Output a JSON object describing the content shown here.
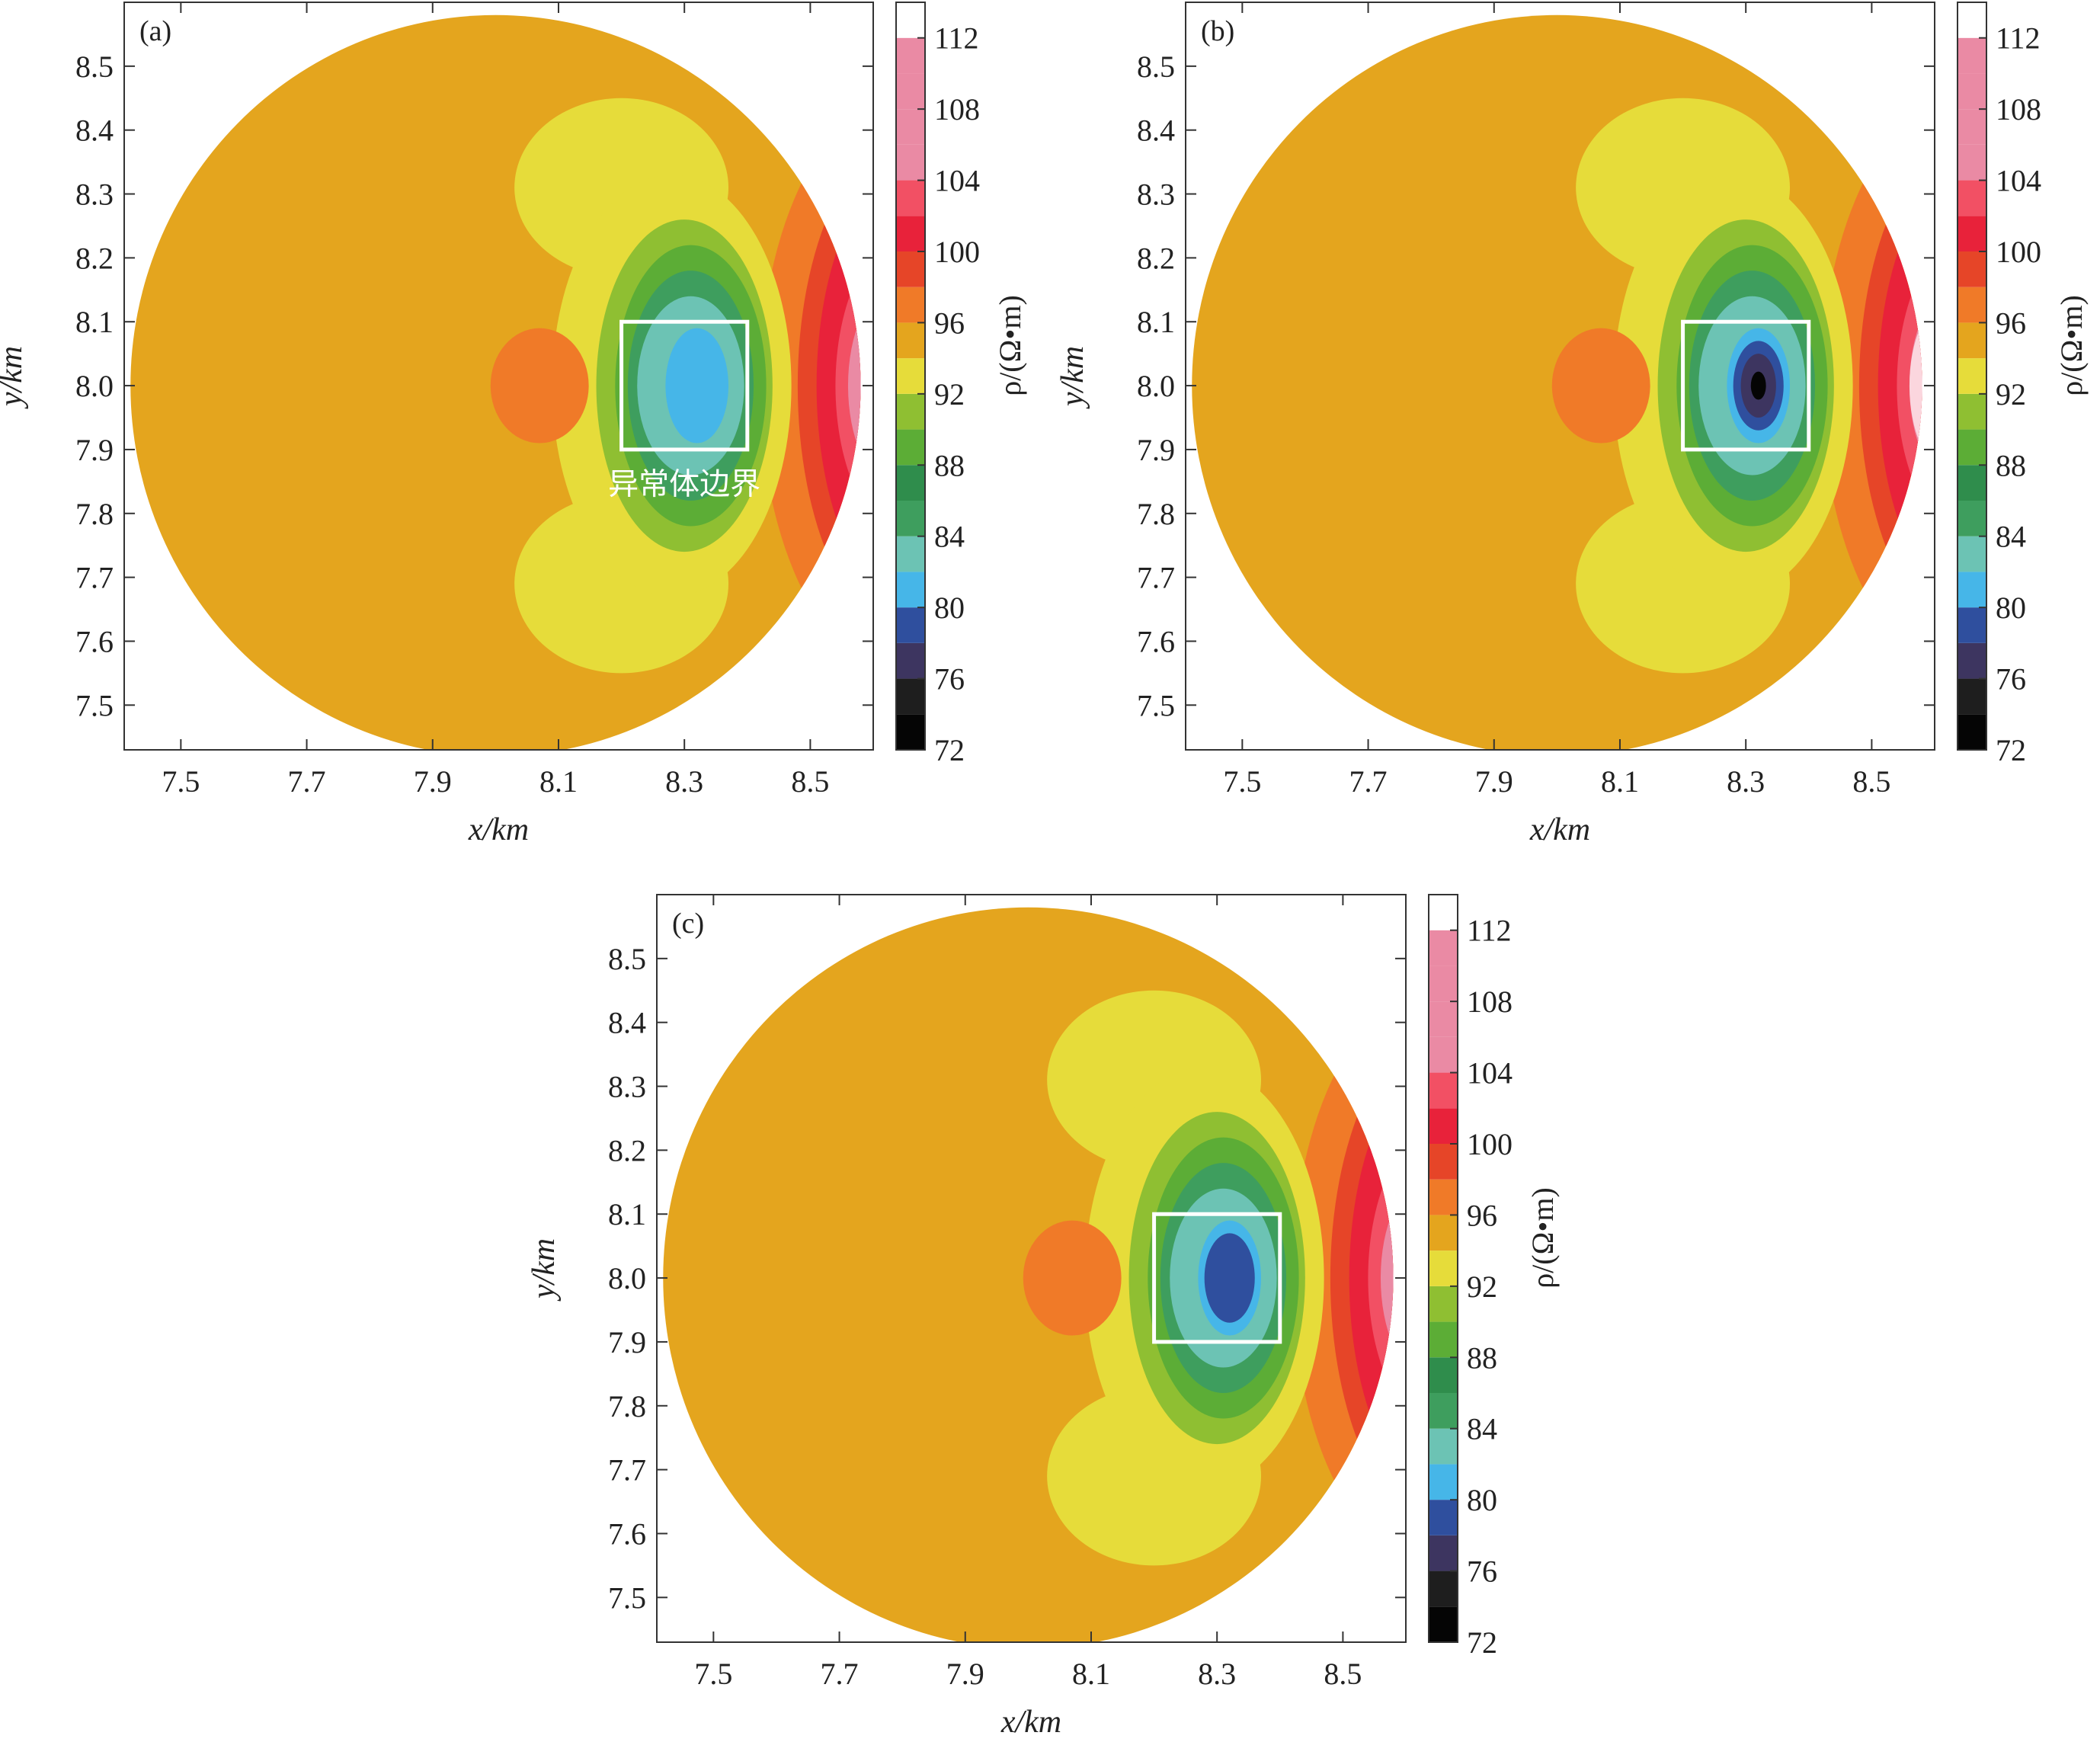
{
  "figure": {
    "legend_ticks": [
      72,
      76,
      80,
      84,
      88,
      92,
      96,
      100,
      104,
      108,
      112
    ],
    "legend_label": "ρ/(Ω•m)",
    "legend_colors": [
      "#050505",
      "#1e1e1e",
      "#3d3560",
      "#2f4f9e",
      "#46b6e8",
      "#6cc3b4",
      "#3e9e5e",
      "#2f8d4c",
      "#5cad36",
      "#8fbf32",
      "#e6dc3a",
      "#e4a51e",
      "#f07a28",
      "#e64528",
      "#e8223a",
      "#f25064",
      "#ea8aa4",
      "#ffffff"
    ],
    "background_color": "#e4a51e",
    "anomaly_box_color": "#ffffff"
  },
  "chart_data": [
    {
      "type": "heatmap",
      "panel": "(a)",
      "xlabel": "x/km",
      "ylabel": "y/km",
      "xticks": [
        "7.5",
        "7.7",
        "7.9",
        "8.1",
        "8.3",
        "8.5"
      ],
      "yticks": [
        "8.5",
        "8.4",
        "8.3",
        "8.2",
        "8.1",
        "8.0",
        "7.9",
        "7.8",
        "7.7",
        "7.6",
        "7.5"
      ],
      "xlim": [
        7.41,
        8.6
      ],
      "ylim": [
        7.43,
        8.6
      ],
      "domain_circle": {
        "cx": 8.0,
        "cy": 8.0,
        "r": 0.58
      },
      "anomaly_box": {
        "x": [
          8.2,
          8.4
        ],
        "y": [
          7.9,
          8.1
        ]
      },
      "anomaly_label": "异常体边界",
      "min_value": 84
    },
    {
      "type": "heatmap",
      "panel": "(b)",
      "xlabel": "x/km",
      "ylabel": "y/km",
      "xticks": [
        "7.5",
        "7.7",
        "7.9",
        "8.1",
        "8.3",
        "8.5"
      ],
      "yticks": [
        "8.5",
        "8.4",
        "8.3",
        "8.2",
        "8.1",
        "8.0",
        "7.9",
        "7.8",
        "7.7",
        "7.6",
        "7.5"
      ],
      "xlim": [
        7.41,
        8.6
      ],
      "ylim": [
        7.43,
        8.6
      ],
      "domain_circle": {
        "cx": 8.0,
        "cy": 8.0,
        "r": 0.58
      },
      "anomaly_box": {
        "x": [
          8.2,
          8.4
        ],
        "y": [
          7.9,
          8.1
        ]
      },
      "anomaly_label": "",
      "min_value": 72
    },
    {
      "type": "heatmap",
      "panel": "(c)",
      "xlabel": "x/km",
      "ylabel": "y/km",
      "xticks": [
        "7.5",
        "7.7",
        "7.9",
        "8.1",
        "8.3",
        "8.5"
      ],
      "yticks": [
        "8.5",
        "8.4",
        "8.3",
        "8.2",
        "8.1",
        "8.0",
        "7.9",
        "7.8",
        "7.7",
        "7.6",
        "7.5"
      ],
      "xlim": [
        7.41,
        8.6
      ],
      "ylim": [
        7.43,
        8.6
      ],
      "domain_circle": {
        "cx": 8.0,
        "cy": 8.0,
        "r": 0.58
      },
      "anomaly_box": {
        "x": [
          8.2,
          8.4
        ],
        "y": [
          7.9,
          8.1
        ]
      },
      "anomaly_label": "",
      "min_value": 80
    }
  ]
}
